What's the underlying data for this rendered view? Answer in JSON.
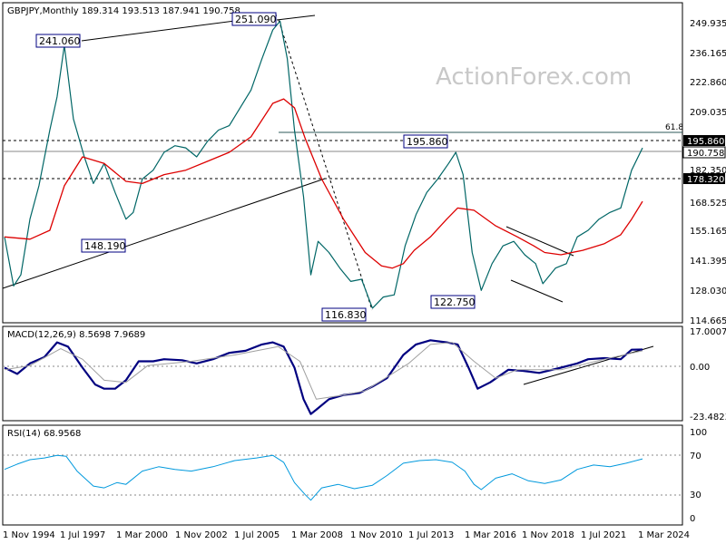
{
  "chart_data": [
    {
      "type": "line",
      "panel": "price",
      "title": "GBPJPY,Monthly  189.314 193.513 187.941 190.758",
      "watermark": "ActionForex.com",
      "ylim": [
        114.665,
        256.0
      ],
      "y_tick_labels": [
        "249.935",
        "236.165",
        "222.860",
        "209.035",
        "195.860",
        "182.350",
        "168.525",
        "155.165",
        "141.395",
        "128.030",
        "114.665"
      ],
      "x_tick_labels": [
        "1 Nov 1994",
        "1 Jul 1997",
        "1 Mar 2000",
        "1 Nov 2002",
        "1 Jul 2005",
        "1 Mar 2008",
        "1 Nov 2010",
        "1 Jul 2013",
        "1 Mar 2016",
        "1 Nov 2018",
        "1 Jul 2021",
        "1 Mar 2024"
      ],
      "series": [
        {
          "name": "",
          "color": "#006666",
          "x": [
            "1994-11",
            "1995-04",
            "1995-08",
            "1996-01",
            "1996-06",
            "1996-12",
            "1997-04",
            "1997-08",
            "1998-01",
            "1998-07",
            "1998-12",
            "1999-06",
            "1999-12",
            "2000-06",
            "2000-10",
            "2001-03",
            "2001-09",
            "2002-03",
            "2002-09",
            "2003-03",
            "2003-09",
            "2004-03",
            "2004-09",
            "2005-03",
            "2005-09",
            "2006-03",
            "2006-09",
            "2007-03",
            "2007-07",
            "2007-11",
            "2008-03",
            "2008-08",
            "2008-12",
            "2009-04",
            "2009-10",
            "2010-04",
            "2010-10",
            "2011-04",
            "2011-10",
            "2012-04",
            "2012-10",
            "2013-04",
            "2013-10",
            "2014-04",
            "2014-10",
            "2015-04",
            "2015-08",
            "2015-12",
            "2016-05",
            "2016-10",
            "2017-04",
            "2017-10",
            "2018-04",
            "2018-10",
            "2019-04",
            "2019-08",
            "2020-03",
            "2020-09",
            "2021-03",
            "2021-09",
            "2022-03",
            "2022-09",
            "2023-03",
            "2023-09",
            "2024-03"
          ],
          "values": [
            152.0,
            130.0,
            135.0,
            160.0,
            175.0,
            200.0,
            215.0,
            238.0,
            205.0,
            188.0,
            176.0,
            185.0,
            172.0,
            160.0,
            163.0,
            178.0,
            182.0,
            190.0,
            193.0,
            192.0,
            188.0,
            195.0,
            200.0,
            202.0,
            210.0,
            218.0,
            232.0,
            245.0,
            249.0,
            232.0,
            200.0,
            170.0,
            135.0,
            150.0,
            145.0,
            138.0,
            132.0,
            133.0,
            120.0,
            125.0,
            126.0,
            148.0,
            162.0,
            172.0,
            178.0,
            185.0,
            190.0,
            180.0,
            145.0,
            128.0,
            140.0,
            148.0,
            150.0,
            144.0,
            140.0,
            131.0,
            138.0,
            140.0,
            152.0,
            155.0,
            160.0,
            163.0,
            165.0,
            182.0,
            192.0
          ]
        },
        {
          "name": "",
          "color": "#dd0000",
          "x": [
            "1994-11",
            "1996-01",
            "1996-12",
            "1997-08",
            "1998-06",
            "1999-06",
            "2000-06",
            "2001-03",
            "2002-03",
            "2003-03",
            "2004-03",
            "2005-03",
            "2006-03",
            "2007-03",
            "2007-09",
            "2008-03",
            "2008-09",
            "2009-06",
            "2010-06",
            "2011-06",
            "2012-03",
            "2012-09",
            "2013-03",
            "2013-09",
            "2014-06",
            "2015-03",
            "2015-09",
            "2016-06",
            "2017-06",
            "2018-06",
            "2019-03",
            "2019-09",
            "2020-06",
            "2021-06",
            "2022-06",
            "2023-03",
            "2023-09",
            "2024-03"
          ],
          "values": [
            152.0,
            151.0,
            155.0,
            175.0,
            188.0,
            185.0,
            177.0,
            176.0,
            180.0,
            182.0,
            186.0,
            190.0,
            197.0,
            212.0,
            214.0,
            210.0,
            196.0,
            178.0,
            160.0,
            145.0,
            139.0,
            138.0,
            140.0,
            146.0,
            152.0,
            160.0,
            165.0,
            164.0,
            157.0,
            152.0,
            148.0,
            145.0,
            144.0,
            146.0,
            149.0,
            153.0,
            160.0,
            168.0
          ]
        }
      ],
      "level_lines": [
        {
          "label": "195.860",
          "value": 195.86,
          "dashed": true
        },
        {
          "label": "190.758",
          "value": 190.758,
          "dashed": false
        },
        {
          "label": "178.320",
          "value": 178.32,
          "dashed": true
        },
        {
          "label": "61.8",
          "value": 198.0,
          "dashed": false
        }
      ],
      "annotations": [
        {
          "label": "241.060",
          "x": "1997-08",
          "value": 241.06
        },
        {
          "label": "251.090",
          "x": "2007-07",
          "value": 251.09
        },
        {
          "label": "148.190",
          "x": "2000-06",
          "value": 148.19
        },
        {
          "label": "195.860",
          "x": "2015-06",
          "value": 195.86
        },
        {
          "label": "116.830",
          "x": "2011-10",
          "value": 116.83
        },
        {
          "label": "122.750",
          "x": "2016-10",
          "value": 122.75
        }
      ]
    },
    {
      "type": "line",
      "panel": "macd",
      "title": "MACD(12,26,9) 8.5698 7.9689",
      "ylim": [
        -23.4823,
        17.0007
      ],
      "y_tick_labels": [
        "17.0007",
        "0.00",
        "-23.4823"
      ],
      "series": [
        {
          "name": "",
          "color": "#000080",
          "x": [
            "1994-11",
            "1995-06",
            "1996-01",
            "1996-09",
            "1997-04",
            "1997-10",
            "1998-06",
            "1999-01",
            "1999-06",
            "1999-12",
            "2000-06",
            "2001-01",
            "2001-09",
            "2002-03",
            "2003-01",
            "2003-09",
            "2004-06",
            "2005-03",
            "2005-12",
            "2006-09",
            "2007-03",
            "2007-09",
            "2008-03",
            "2008-08",
            "2008-12",
            "2009-03",
            "2009-10",
            "2010-06",
            "2011-03",
            "2011-10",
            "2012-06",
            "2013-03",
            "2013-10",
            "2014-06",
            "2015-03",
            "2015-09",
            "2016-03",
            "2016-08",
            "2017-03",
            "2018-01",
            "2018-09",
            "2019-06",
            "2020-06",
            "2021-03",
            "2021-09",
            "2022-06",
            "2023-03",
            "2023-09",
            "2024-03"
          ],
          "values": [
            0.0,
            -3.0,
            2.0,
            5.0,
            12.0,
            10.0,
            0.0,
            -8.0,
            -10.0,
            -10.0,
            -6.0,
            3.0,
            3.0,
            4.0,
            3.5,
            2.0,
            4.0,
            7.0,
            8.0,
            11.0,
            12.0,
            10.0,
            0.0,
            -15.0,
            -22.0,
            -20.0,
            -15.0,
            -13.0,
            -12.0,
            -9.0,
            -5.0,
            6.0,
            11.0,
            13.0,
            12.0,
            11.0,
            0.0,
            -10.0,
            -7.0,
            -1.0,
            -1.5,
            -2.5,
            0.0,
            2.0,
            4.0,
            4.5,
            4.0,
            8.5,
            8.6
          ]
        },
        {
          "name": "",
          "color": "#a0a0a0",
          "x": [
            "1994-11",
            "1996-01",
            "1997-06",
            "1998-06",
            "1999-06",
            "2000-06",
            "2001-06",
            "2003-06",
            "2005-06",
            "2007-06",
            "2008-06",
            "2009-03",
            "2010-06",
            "2011-06",
            "2013-06",
            "2014-06",
            "2015-06",
            "2016-06",
            "2017-06",
            "2018-06",
            "2020-06",
            "2022-06",
            "2024-03"
          ],
          "values": [
            -1.0,
            1.0,
            9.0,
            4.0,
            -6.0,
            -7.0,
            1.0,
            3.0,
            6.0,
            10.0,
            3.0,
            -15.0,
            -13.0,
            -11.0,
            2.0,
            11.0,
            12.0,
            3.0,
            -5.0,
            -1.0,
            -1.0,
            4.0,
            8.0
          ]
        }
      ],
      "trendline_note": ""
    },
    {
      "type": "line",
      "panel": "rsi",
      "title": "RSI(14) 68.9568",
      "ylim": [
        0,
        100
      ],
      "y_tick_labels": [
        "100",
        "70",
        "30",
        "0"
      ],
      "series": [
        {
          "name": "",
          "color": "#0099dd",
          "x": [
            "1994-11",
            "1995-06",
            "1996-01",
            "1996-09",
            "1997-04",
            "1997-09",
            "1998-03",
            "1998-12",
            "1999-06",
            "2000-01",
            "2000-06",
            "2001-03",
            "2001-12",
            "2002-09",
            "2003-06",
            "2004-06",
            "2005-06",
            "2006-06",
            "2007-03",
            "2007-09",
            "2008-03",
            "2008-09",
            "2008-12",
            "2009-06",
            "2010-03",
            "2010-12",
            "2011-10",
            "2012-06",
            "2013-03",
            "2013-12",
            "2014-09",
            "2015-06",
            "2016-01",
            "2016-06",
            "2016-10",
            "2017-06",
            "2018-03",
            "2018-12",
            "2019-09",
            "2020-06",
            "2021-03",
            "2021-12",
            "2022-09",
            "2023-06",
            "2024-03"
          ],
          "values": [
            57.0,
            63.0,
            68.0,
            70.0,
            73.0,
            72.0,
            55.0,
            38.0,
            36.0,
            42.0,
            40.0,
            55.0,
            60.0,
            57.0,
            55.0,
            60.0,
            67.0,
            70.0,
            73.0,
            65.0,
            42.0,
            28.0,
            22.0,
            36.0,
            40.0,
            35.0,
            39.0,
            50.0,
            64.0,
            67.0,
            68.0,
            65.0,
            55.0,
            40.0,
            34.0,
            47.0,
            52.0,
            44.0,
            41.0,
            45.0,
            57.0,
            62.0,
            60.0,
            64.0,
            69.0
          ]
        }
      ],
      "levels": [
        70,
        30
      ]
    }
  ]
}
